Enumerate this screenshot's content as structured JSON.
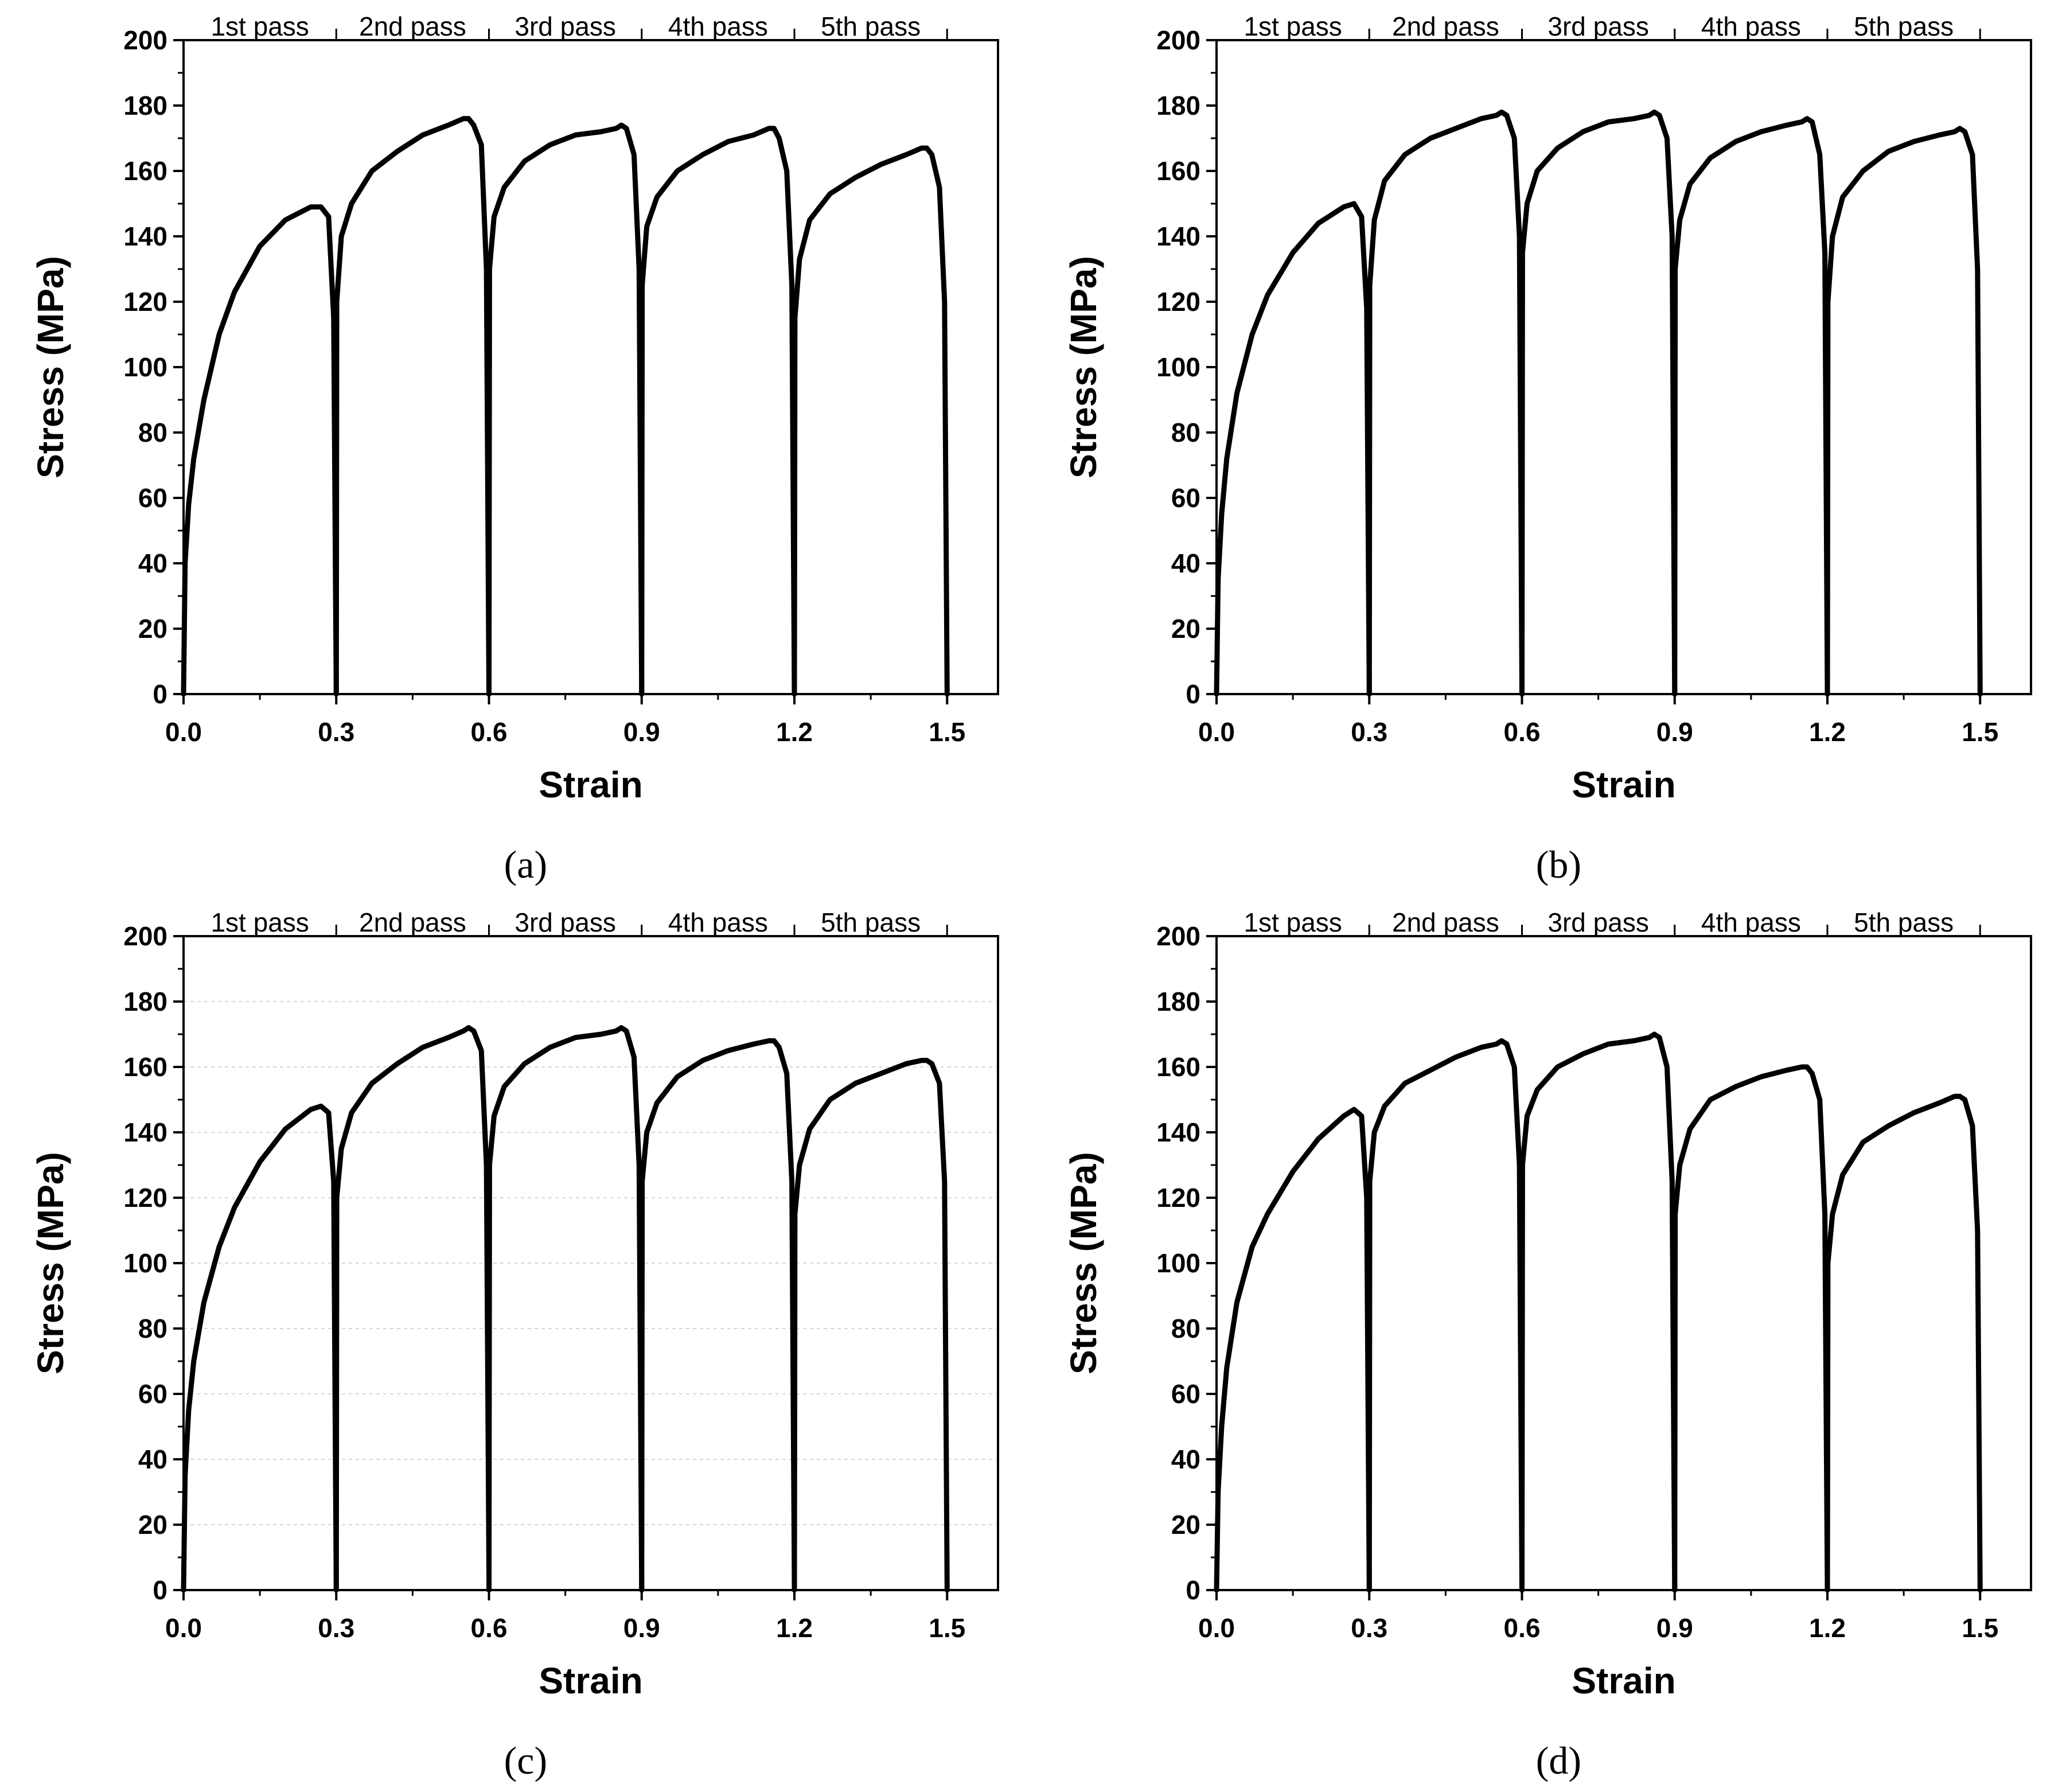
{
  "chart_data": [
    {
      "type": "line",
      "panel": "a",
      "caption": "(a)",
      "xlabel": "Strain",
      "ylabel": "Stress (MPa)",
      "xlim": [
        0,
        1.6
      ],
      "ylim": [
        0,
        200
      ],
      "xticks": [
        "0.0",
        "0.3",
        "0.6",
        "0.9",
        "1.2",
        "1.5"
      ],
      "yticks": [
        "0",
        "20",
        "40",
        "60",
        "80",
        "100",
        "120",
        "140",
        "160",
        "180",
        "200"
      ],
      "pass_labels": [
        "1st pass",
        "2nd pass",
        "3rd pass",
        "4th pass",
        "5th pass"
      ],
      "grid": false,
      "series": [
        {
          "name": "1st pass",
          "x": [
            0.0,
            0.003,
            0.01,
            0.02,
            0.04,
            0.07,
            0.1,
            0.15,
            0.2,
            0.25,
            0.27,
            0.285,
            0.295,
            0.3
          ],
          "y": [
            0,
            40,
            58,
            72,
            90,
            110,
            123,
            137,
            145,
            149,
            149,
            146,
            115,
            0
          ]
        },
        {
          "name": "2nd pass",
          "x": [
            0.3,
            0.301,
            0.31,
            0.33,
            0.37,
            0.42,
            0.47,
            0.52,
            0.55,
            0.56,
            0.57,
            0.585,
            0.595,
            0.6
          ],
          "y": [
            0,
            120,
            140,
            150,
            160,
            166,
            171,
            174,
            176,
            176,
            174,
            168,
            130,
            0
          ]
        },
        {
          "name": "3rd pass",
          "x": [
            0.6,
            0.601,
            0.61,
            0.63,
            0.67,
            0.72,
            0.77,
            0.82,
            0.85,
            0.86,
            0.87,
            0.885,
            0.895,
            0.9
          ],
          "y": [
            0,
            130,
            146,
            155,
            163,
            168,
            171,
            172,
            173,
            174,
            173,
            165,
            130,
            0
          ]
        },
        {
          "name": "4th pass",
          "x": [
            0.9,
            0.901,
            0.91,
            0.93,
            0.97,
            1.02,
            1.07,
            1.12,
            1.15,
            1.16,
            1.17,
            1.185,
            1.195,
            1.2
          ],
          "y": [
            0,
            125,
            143,
            152,
            160,
            165,
            169,
            171,
            173,
            173,
            170,
            160,
            125,
            0
          ]
        },
        {
          "name": "5th pass",
          "x": [
            1.2,
            1.201,
            1.21,
            1.23,
            1.27,
            1.32,
            1.37,
            1.42,
            1.45,
            1.46,
            1.47,
            1.485,
            1.495,
            1.5
          ],
          "y": [
            0,
            115,
            133,
            145,
            153,
            158,
            162,
            165,
            167,
            167,
            165,
            155,
            120,
            0
          ]
        }
      ]
    },
    {
      "type": "line",
      "panel": "b",
      "caption": "(b)",
      "xlabel": "Strain",
      "ylabel": "Stress (MPa)",
      "xlim": [
        0,
        1.6
      ],
      "ylim": [
        0,
        200
      ],
      "xticks": [
        "0.0",
        "0.3",
        "0.6",
        "0.9",
        "1.2",
        "1.5"
      ],
      "yticks": [
        "0",
        "20",
        "40",
        "60",
        "80",
        "100",
        "120",
        "140",
        "160",
        "180",
        "200"
      ],
      "pass_labels": [
        "1st pass",
        "2nd pass",
        "3rd pass",
        "4th pass",
        "5th pass"
      ],
      "grid": false,
      "series": [
        {
          "name": "1st pass",
          "x": [
            0.0,
            0.003,
            0.01,
            0.02,
            0.04,
            0.07,
            0.1,
            0.15,
            0.2,
            0.25,
            0.27,
            0.285,
            0.295,
            0.3
          ],
          "y": [
            0,
            35,
            55,
            72,
            92,
            110,
            122,
            135,
            144,
            149,
            150,
            146,
            118,
            0
          ]
        },
        {
          "name": "2nd pass",
          "x": [
            0.3,
            0.301,
            0.31,
            0.33,
            0.37,
            0.42,
            0.47,
            0.52,
            0.55,
            0.56,
            0.57,
            0.585,
            0.595,
            0.6
          ],
          "y": [
            0,
            125,
            145,
            157,
            165,
            170,
            173,
            176,
            177,
            178,
            177,
            170,
            140,
            0
          ]
        },
        {
          "name": "3rd pass",
          "x": [
            0.6,
            0.601,
            0.61,
            0.63,
            0.67,
            0.72,
            0.77,
            0.82,
            0.85,
            0.86,
            0.87,
            0.885,
            0.895,
            0.9
          ],
          "y": [
            0,
            135,
            150,
            160,
            167,
            172,
            175,
            176,
            177,
            178,
            177,
            170,
            140,
            0
          ]
        },
        {
          "name": "4th pass",
          "x": [
            0.9,
            0.901,
            0.91,
            0.93,
            0.97,
            1.02,
            1.07,
            1.12,
            1.15,
            1.16,
            1.17,
            1.185,
            1.195,
            1.2
          ],
          "y": [
            0,
            130,
            145,
            156,
            164,
            169,
            172,
            174,
            175,
            176,
            175,
            165,
            135,
            0
          ]
        },
        {
          "name": "5th pass",
          "x": [
            1.2,
            1.201,
            1.21,
            1.23,
            1.27,
            1.32,
            1.37,
            1.42,
            1.45,
            1.46,
            1.47,
            1.485,
            1.495,
            1.5
          ],
          "y": [
            0,
            120,
            140,
            152,
            160,
            166,
            169,
            171,
            172,
            173,
            172,
            165,
            130,
            0
          ]
        }
      ]
    },
    {
      "type": "line",
      "panel": "c",
      "caption": "(c)",
      "xlabel": "Strain",
      "ylabel": "Stress (MPa)",
      "xlim": [
        0,
        1.6
      ],
      "ylim": [
        0,
        200
      ],
      "xticks": [
        "0.0",
        "0.3",
        "0.6",
        "0.9",
        "1.2",
        "1.5"
      ],
      "yticks": [
        "0",
        "20",
        "40",
        "60",
        "80",
        "100",
        "120",
        "140",
        "160",
        "180",
        "200"
      ],
      "pass_labels": [
        "1st pass",
        "2nd pass",
        "3rd pass",
        "4th pass",
        "5th pass"
      ],
      "grid": true,
      "series": [
        {
          "name": "1st pass",
          "x": [
            0.0,
            0.003,
            0.01,
            0.02,
            0.04,
            0.07,
            0.1,
            0.15,
            0.2,
            0.25,
            0.27,
            0.285,
            0.295,
            0.3
          ],
          "y": [
            0,
            35,
            55,
            70,
            88,
            105,
            117,
            131,
            141,
            147,
            148,
            146,
            125,
            0
          ]
        },
        {
          "name": "2nd pass",
          "x": [
            0.3,
            0.301,
            0.31,
            0.33,
            0.37,
            0.42,
            0.47,
            0.52,
            0.55,
            0.56,
            0.57,
            0.585,
            0.595,
            0.6
          ],
          "y": [
            0,
            120,
            135,
            146,
            155,
            161,
            166,
            169,
            171,
            172,
            171,
            165,
            130,
            5
          ]
        },
        {
          "name": "3rd pass",
          "x": [
            0.6,
            0.601,
            0.61,
            0.63,
            0.67,
            0.72,
            0.77,
            0.82,
            0.85,
            0.86,
            0.87,
            0.885,
            0.895,
            0.9
          ],
          "y": [
            0,
            130,
            145,
            154,
            161,
            166,
            169,
            170,
            171,
            172,
            171,
            163,
            130,
            0
          ]
        },
        {
          "name": "4th pass",
          "x": [
            0.9,
            0.901,
            0.91,
            0.93,
            0.97,
            1.02,
            1.07,
            1.12,
            1.15,
            1.16,
            1.17,
            1.185,
            1.195,
            1.2
          ],
          "y": [
            0,
            125,
            140,
            149,
            157,
            162,
            165,
            167,
            168,
            168,
            166,
            158,
            125,
            2
          ]
        },
        {
          "name": "5th pass",
          "x": [
            1.2,
            1.201,
            1.21,
            1.23,
            1.27,
            1.32,
            1.37,
            1.42,
            1.45,
            1.46,
            1.47,
            1.485,
            1.495,
            1.5
          ],
          "y": [
            0,
            115,
            130,
            141,
            150,
            155,
            158,
            161,
            162,
            162,
            161,
            155,
            125,
            0
          ]
        }
      ]
    },
    {
      "type": "line",
      "panel": "d",
      "caption": "(d)",
      "xlabel": "Strain",
      "ylabel": "Stress (MPa)",
      "xlim": [
        0,
        1.6
      ],
      "ylim": [
        0,
        200
      ],
      "xticks": [
        "0.0",
        "0.3",
        "0.6",
        "0.9",
        "1.2",
        "1.5"
      ],
      "yticks": [
        "0",
        "20",
        "40",
        "60",
        "80",
        "100",
        "120",
        "140",
        "160",
        "180",
        "200"
      ],
      "pass_labels": [
        "1st pass",
        "2nd pass",
        "3rd pass",
        "4th pass",
        "5th pass"
      ],
      "grid": false,
      "series": [
        {
          "name": "1st pass",
          "x": [
            0.0,
            0.003,
            0.01,
            0.02,
            0.04,
            0.07,
            0.1,
            0.15,
            0.2,
            0.25,
            0.27,
            0.285,
            0.295,
            0.3
          ],
          "y": [
            0,
            30,
            50,
            68,
            88,
            105,
            115,
            128,
            138,
            145,
            147,
            145,
            120,
            0
          ]
        },
        {
          "name": "2nd pass",
          "x": [
            0.3,
            0.301,
            0.31,
            0.33,
            0.37,
            0.42,
            0.47,
            0.52,
            0.55,
            0.56,
            0.57,
            0.585,
            0.595,
            0.6
          ],
          "y": [
            0,
            125,
            140,
            148,
            155,
            159,
            163,
            166,
            167,
            168,
            167,
            160,
            130,
            0
          ]
        },
        {
          "name": "3rd pass",
          "x": [
            0.6,
            0.601,
            0.61,
            0.63,
            0.67,
            0.72,
            0.77,
            0.82,
            0.85,
            0.86,
            0.87,
            0.885,
            0.895,
            0.9
          ],
          "y": [
            0,
            130,
            145,
            153,
            160,
            164,
            167,
            168,
            169,
            170,
            169,
            160,
            125,
            0
          ]
        },
        {
          "name": "4th pass",
          "x": [
            0.9,
            0.901,
            0.91,
            0.93,
            0.97,
            1.02,
            1.07,
            1.12,
            1.15,
            1.16,
            1.17,
            1.185,
            1.195,
            1.2
          ],
          "y": [
            0,
            115,
            130,
            141,
            150,
            154,
            157,
            159,
            160,
            160,
            158,
            150,
            115,
            0
          ]
        },
        {
          "name": "5th pass",
          "x": [
            1.2,
            1.201,
            1.21,
            1.23,
            1.27,
            1.32,
            1.37,
            1.42,
            1.45,
            1.46,
            1.47,
            1.485,
            1.495,
            1.5
          ],
          "y": [
            0,
            100,
            115,
            127,
            137,
            142,
            146,
            149,
            151,
            151,
            150,
            142,
            110,
            0
          ]
        }
      ]
    }
  ]
}
